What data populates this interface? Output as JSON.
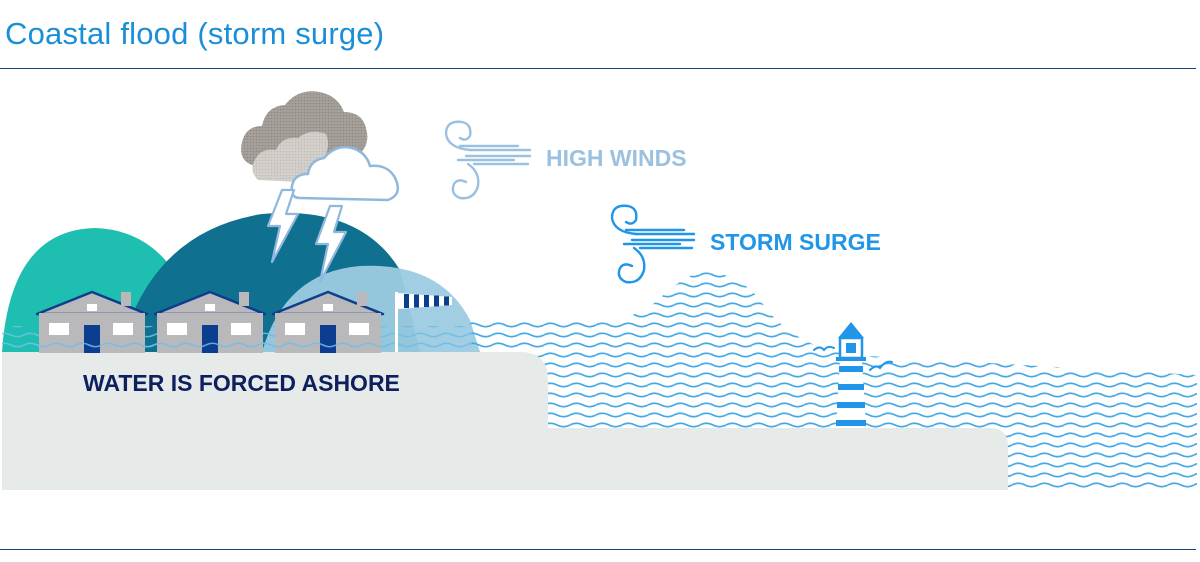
{
  "title": "Coastal flood (storm surge)",
  "labels": {
    "high_winds": "HIGH WINDS",
    "storm_surge": "STORM SURGE",
    "water_forced": "WATER IS FORCED ASHORE"
  },
  "icons": [
    "storm-cloud-icon",
    "lightning-bolt-icon",
    "wind-icon",
    "house-icon",
    "windsock-icon",
    "lighthouse-icon",
    "seagull-icon"
  ],
  "colors": {
    "title": "#1a8fd8",
    "rule": "#1c3f7a",
    "high_winds": "#9cc1e0",
    "storm_surge": "#2196e8",
    "water_forced": "#0d1f5c",
    "wave": "#45a9e6",
    "land": "#e6ebea",
    "hill_teal": "#1ebfb0",
    "hill_dark": "#10708f",
    "hill_light": "#9ccbe0",
    "house": "#b9b9bb",
    "house_door": "#0d3d8f",
    "cloud_dark": "#9b9590",
    "cloud_mid": "#cfcbc7"
  }
}
